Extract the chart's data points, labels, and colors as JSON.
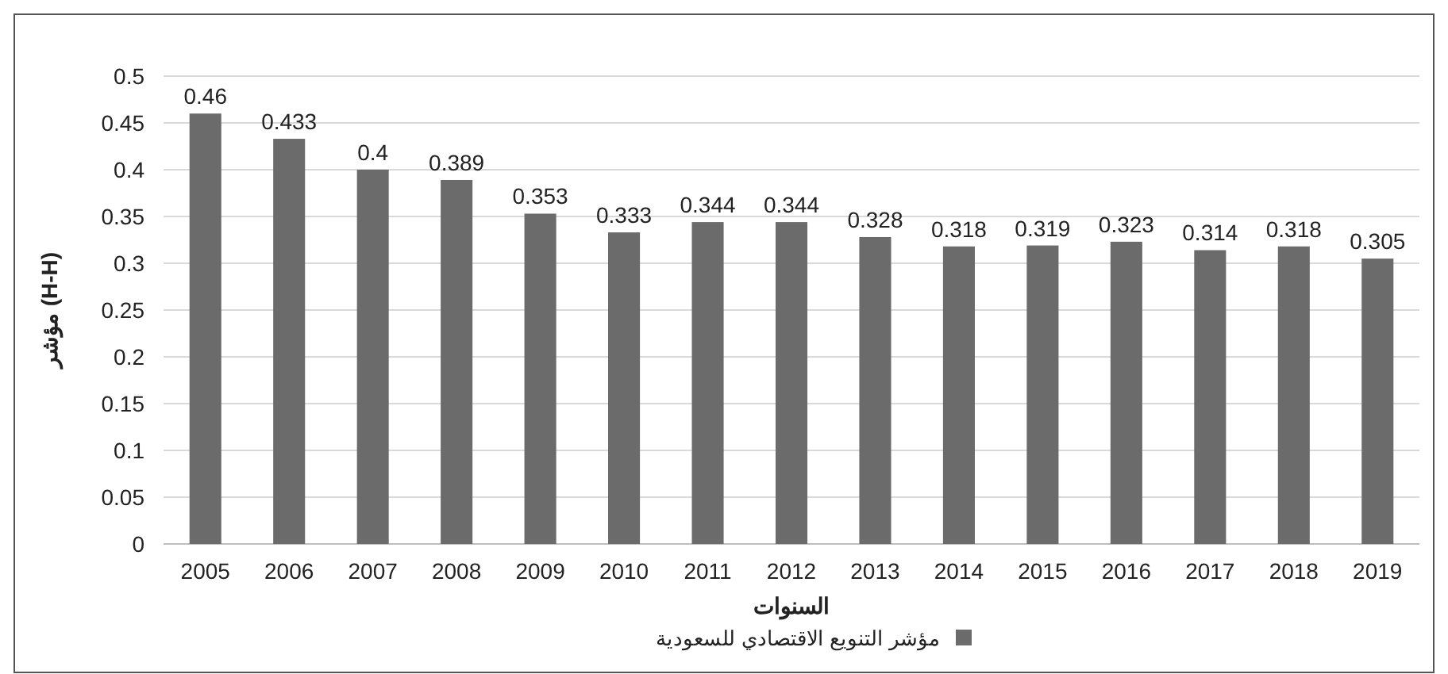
{
  "chart_data": {
    "type": "bar",
    "xlabel": "السنوات",
    "ylabel": "مؤشر (H-H)",
    "categories": [
      "2005",
      "2006",
      "2007",
      "2008",
      "2009",
      "2010",
      "2011",
      "2012",
      "2013",
      "2014",
      "2015",
      "2016",
      "2017",
      "2018",
      "2019"
    ],
    "series": [
      {
        "name": "مؤشر التنويع الاقتصادي للسعودية",
        "color": "#6b6b6b",
        "values": [
          0.46,
          0.433,
          0.4,
          0.389,
          0.353,
          0.333,
          0.344,
          0.344,
          0.328,
          0.318,
          0.319,
          0.323,
          0.314,
          0.318,
          0.305
        ]
      }
    ],
    "ylim": [
      0,
      0.5
    ],
    "yticks": [
      0,
      0.05,
      0.1,
      0.15,
      0.2,
      0.25,
      0.3,
      0.35,
      0.4,
      0.45,
      0.5
    ],
    "grid": "y",
    "data_labels": true,
    "legend": "bottom right"
  }
}
